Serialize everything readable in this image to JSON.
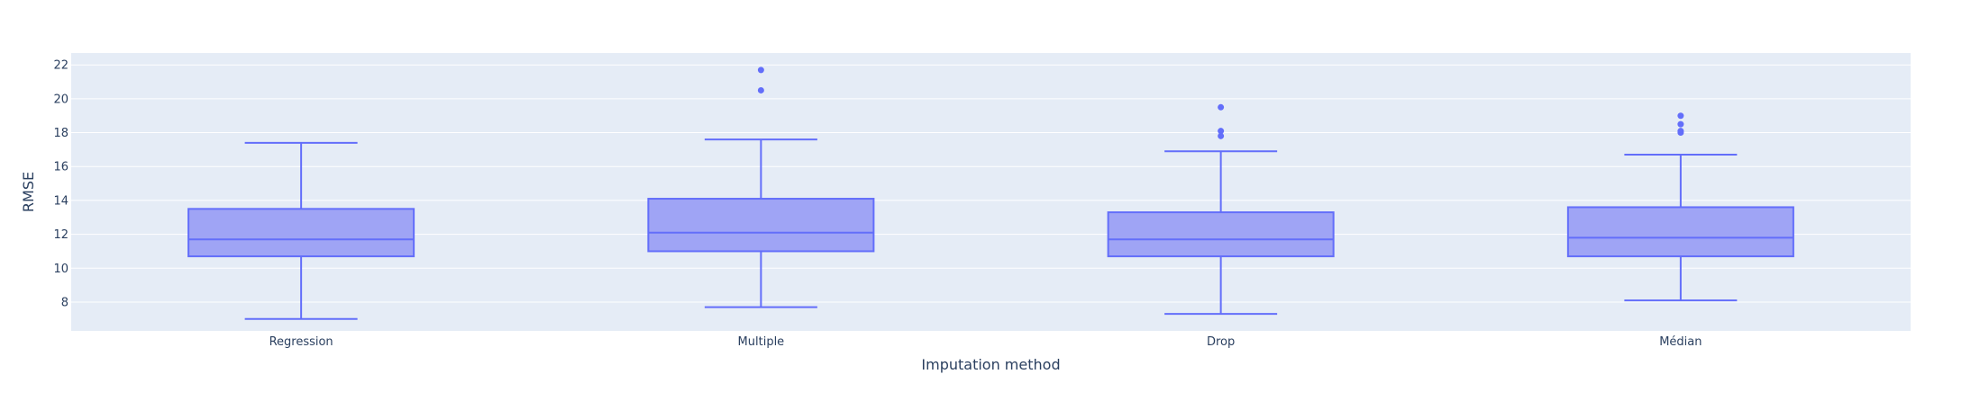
{
  "chart_data": {
    "type": "box",
    "xlabel": "Imputation method",
    "ylabel": "RMSE",
    "ylim": [
      6.3,
      22.7
    ],
    "yticks": [
      8,
      10,
      12,
      14,
      16,
      18,
      20,
      22
    ],
    "grid": true,
    "colors": {
      "plot_bg": "#e5ecf6",
      "box_fill": "#9fa4f5",
      "box_line": "#636efa",
      "grid": "#ffffff",
      "text": "#2a3f5f"
    },
    "categories": [
      "Regression",
      "Multiple",
      "Drop",
      "Médian"
    ],
    "boxes": [
      {
        "category": "Regression",
        "min": 7.0,
        "q1": 10.7,
        "median": 11.7,
        "q3": 13.5,
        "max": 17.4,
        "outliers": []
      },
      {
        "category": "Multiple",
        "min": 7.7,
        "q1": 11.0,
        "median": 12.1,
        "q3": 14.1,
        "max": 17.6,
        "outliers": [
          20.5,
          21.7
        ]
      },
      {
        "category": "Drop",
        "min": 7.3,
        "q1": 10.7,
        "median": 11.7,
        "q3": 13.3,
        "max": 16.9,
        "outliers": [
          17.8,
          18.1,
          19.5
        ]
      },
      {
        "category": "Médian",
        "min": 8.1,
        "q1": 10.7,
        "median": 11.8,
        "q3": 13.6,
        "max": 16.7,
        "outliers": [
          18.0,
          18.1,
          18.5,
          19.0
        ]
      }
    ]
  }
}
